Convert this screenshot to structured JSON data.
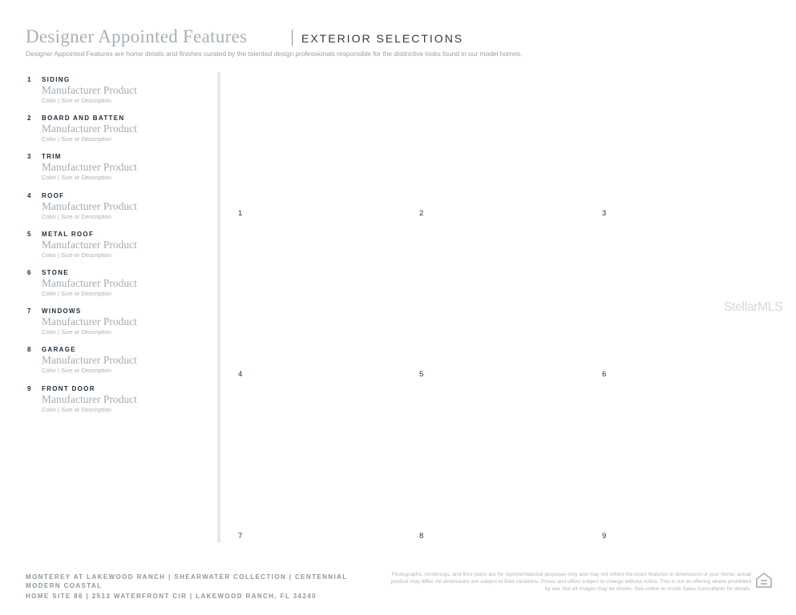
{
  "header": {
    "title": "Designer Appointed Features",
    "subtitle": "EXTERIOR SELECTIONS",
    "intro": "Designer Appointed Features are home details and finishes curated by the talented design professionals responsible for the distinctive looks found in our model homes."
  },
  "items": [
    {
      "num": "1",
      "label": "SIDING",
      "product": "Manufacturer Product",
      "desc": "Color | Size or Description"
    },
    {
      "num": "2",
      "label": "BOARD AND BATTEN",
      "product": "Manufacturer Product",
      "desc": "Color | Size or Description"
    },
    {
      "num": "3",
      "label": "TRIM",
      "product": "Manufacturer Product",
      "desc": "Color | Size or Description"
    },
    {
      "num": "4",
      "label": "ROOF",
      "product": "Manufacturer Product",
      "desc": "Color | Size or Description"
    },
    {
      "num": "5",
      "label": "METAL ROOF",
      "product": "Manufacturer Product",
      "desc": "Color | Size or Description"
    },
    {
      "num": "6",
      "label": "STONE",
      "product": "Manufacturer Product",
      "desc": "Color | Size or Description"
    },
    {
      "num": "7",
      "label": "WINDOWS",
      "product": "Manufacturer Product",
      "desc": "Color | Size or Description"
    },
    {
      "num": "8",
      "label": "GARAGE",
      "product": "Manufacturer Product",
      "desc": "Color | Size or Description"
    },
    {
      "num": "9",
      "label": "FRONT DOOR",
      "product": "Manufacturer Product",
      "desc": "Color | Size or Description"
    }
  ],
  "grid": [
    "1",
    "2",
    "3",
    "4",
    "5",
    "6",
    "7",
    "8",
    "9"
  ],
  "watermark": "StellarMLS",
  "footer": {
    "line1": "MONTEREY AT LAKEWOOD RANCH  |  SHEARWATER COLLECTION  |  CENTENNIAL",
    "line2": "MODERN COASTAL",
    "line3": "HOME SITE 86  |  2513 WATERFRONT CIR  |  LAKEWOOD RANCH, FL 34240",
    "disclaimer": "Photographs, renderings, and floor plans are for representational purposes only and may not reflect the exact features or dimensions of your home; actual product may differ. All dimensions are subject to field variations. Prices and offers subject to change without notice. This is not an offering where prohibited by law. Not all images may be shown. See online or onsite Sales Consultants for details.",
    "logo_icon": "equal-housing-opportunity-icon"
  }
}
